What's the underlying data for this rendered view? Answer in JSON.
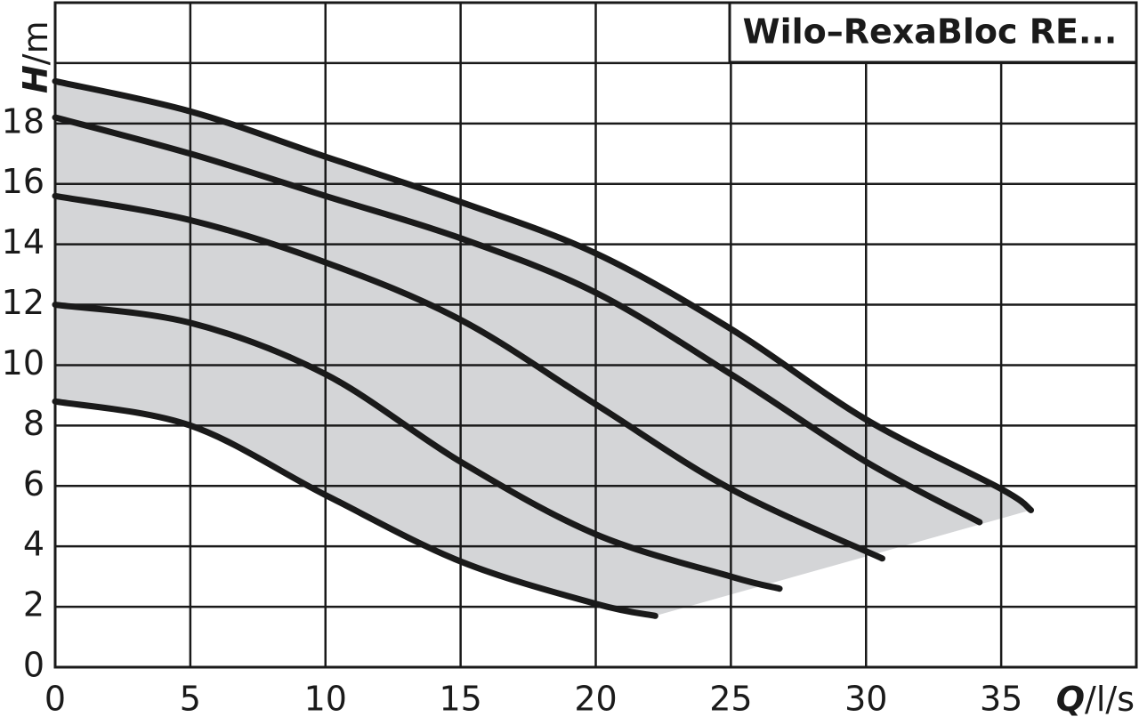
{
  "chart_data": {
    "type": "line",
    "title": "Wilo–RexaBloc RE...",
    "x_axis_label": {
      "symbol": "Q",
      "unit": "/l/s"
    },
    "y_axis_label": {
      "symbol": "H",
      "unit": "/m"
    },
    "xlim": [
      0,
      40
    ],
    "ylim": [
      0,
      22
    ],
    "xticks": [
      0,
      5,
      10,
      15,
      20,
      25,
      30,
      35
    ],
    "yticks": [
      0,
      2,
      4,
      6,
      8,
      10,
      12,
      14,
      16,
      18
    ],
    "grid_x": [
      0,
      5,
      10,
      15,
      20,
      25,
      30,
      35,
      40
    ],
    "grid_y": [
      0,
      2,
      4,
      6,
      8,
      10,
      12,
      14,
      16,
      18,
      20,
      22
    ],
    "grid": true,
    "range_fill_color": "#d4d5d7",
    "series": [
      {
        "color": "#1a1a1a",
        "x": [
          0,
          5,
          10,
          15,
          20,
          25,
          30,
          35,
          36.1
        ],
        "values": [
          19.4,
          18.4,
          16.9,
          15.4,
          13.7,
          11.2,
          8.2,
          5.9,
          5.2
        ]
      },
      {
        "color": "#1a1a1a",
        "x": [
          0,
          5,
          10,
          15,
          20,
          25,
          30,
          34.2
        ],
        "values": [
          18.2,
          17.0,
          15.6,
          14.2,
          12.4,
          9.7,
          6.8,
          4.8
        ]
      },
      {
        "color": "#1a1a1a",
        "x": [
          0,
          5,
          10,
          15,
          20,
          25,
          30.6
        ],
        "values": [
          15.6,
          14.8,
          13.4,
          11.5,
          8.7,
          5.9,
          3.6
        ]
      },
      {
        "color": "#1a1a1a",
        "x": [
          0,
          5,
          10,
          15,
          20,
          25,
          26.8
        ],
        "values": [
          12.0,
          11.4,
          9.7,
          6.8,
          4.4,
          3.0,
          2.6
        ]
      },
      {
        "color": "#1a1a1a",
        "x": [
          0,
          5,
          10,
          15,
          20,
          22.2
        ],
        "values": [
          8.8,
          8.0,
          5.7,
          3.5,
          2.1,
          1.7
        ]
      }
    ]
  }
}
